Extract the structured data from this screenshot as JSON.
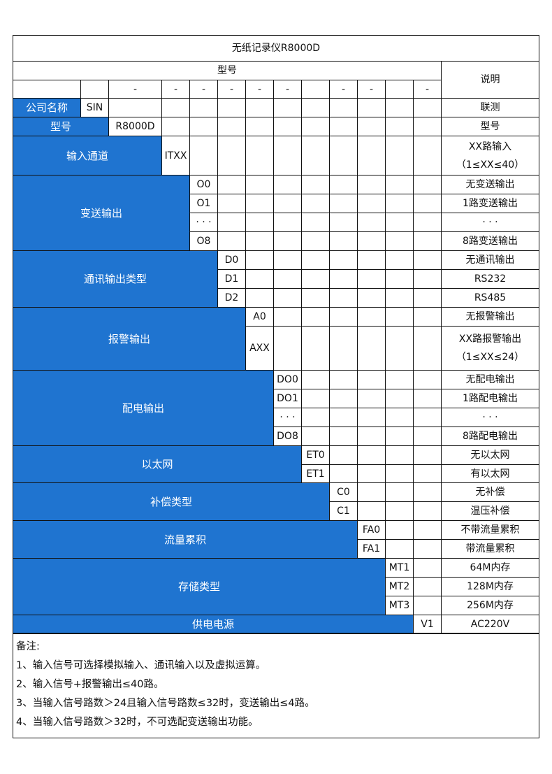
{
  "title": "无纸记录仪R8000D",
  "header": {
    "model_label": "型号",
    "desc_label": "说明",
    "separators": [
      "",
      "",
      "-",
      "-",
      "-",
      "-",
      "-",
      "-",
      "",
      "-",
      "-",
      "",
      "-"
    ]
  },
  "colors": {
    "accent": "#1f74d0",
    "border": "#111111"
  },
  "sections": [
    {
      "label": "公司名称",
      "options": [
        {
          "code": "SIN",
          "desc": "联测"
        }
      ]
    },
    {
      "label": "型号",
      "options": [
        {
          "code": "R8000D",
          "desc": "型号"
        }
      ]
    },
    {
      "label": "输入通道",
      "options": [
        {
          "code": "ITXX",
          "desc": "XX路输入",
          "desc2": "（1≤XX≤40）"
        }
      ]
    },
    {
      "label": "变送输出",
      "options": [
        {
          "code": "O0",
          "desc": "无变送输出"
        },
        {
          "code": "O1",
          "desc": "1路变送输出"
        },
        {
          "code": "· · ·",
          "desc": "· · ·"
        },
        {
          "code": "O8",
          "desc": "8路变送输出"
        }
      ]
    },
    {
      "label": "通讯输出类型",
      "options": [
        {
          "code": "D0",
          "desc": "无通讯输出"
        },
        {
          "code": "D1",
          "desc": "RS232"
        },
        {
          "code": "D2",
          "desc": "RS485"
        }
      ]
    },
    {
      "label": "报警输出",
      "options": [
        {
          "code": "A0",
          "desc": "无报警输出"
        },
        {
          "code": "AXX",
          "desc": "XX路报警输出",
          "desc2": "（1≤XX≤24）"
        }
      ]
    },
    {
      "label": "配电输出",
      "options": [
        {
          "code": "DO0",
          "desc": "无配电输出"
        },
        {
          "code": "DO1",
          "desc": "1路配电输出"
        },
        {
          "code": "· · ·",
          "desc": "· · ·"
        },
        {
          "code": "DO8",
          "desc": "8路配电输出"
        }
      ]
    },
    {
      "label": "以太网",
      "options": [
        {
          "code": "ET0",
          "desc": "无以太网"
        },
        {
          "code": "ET1",
          "desc": "有以太网"
        }
      ]
    },
    {
      "label": "补偿类型",
      "options": [
        {
          "code": "C0",
          "desc": "无补偿"
        },
        {
          "code": "C1",
          "desc": "温压补偿"
        }
      ]
    },
    {
      "label": "流量累积",
      "options": [
        {
          "code": "FA0",
          "desc": "不带流量累积"
        },
        {
          "code": "FA1",
          "desc": "带流量累积"
        }
      ]
    },
    {
      "label": "存储类型",
      "options": [
        {
          "code": "MT1",
          "desc": "64M内存"
        },
        {
          "code": "MT2",
          "desc": "128M内存"
        },
        {
          "code": "MT3",
          "desc": "256M内存"
        }
      ]
    },
    {
      "label": "供电电源",
      "options": [
        {
          "code": "V1",
          "desc": "AC220V"
        }
      ]
    }
  ],
  "notes": {
    "heading": "备注:",
    "items": [
      "1、输入信号可选择模拟输入、通讯输入以及虚拟运算。",
      "2、输入信号+报警输出≤40路。",
      "3、当输入信号路数＞24且输入信号路数≤32时，变送输出≤4路。",
      "4、当输入信号路数＞32时，不可选配变送输出功能。"
    ]
  }
}
